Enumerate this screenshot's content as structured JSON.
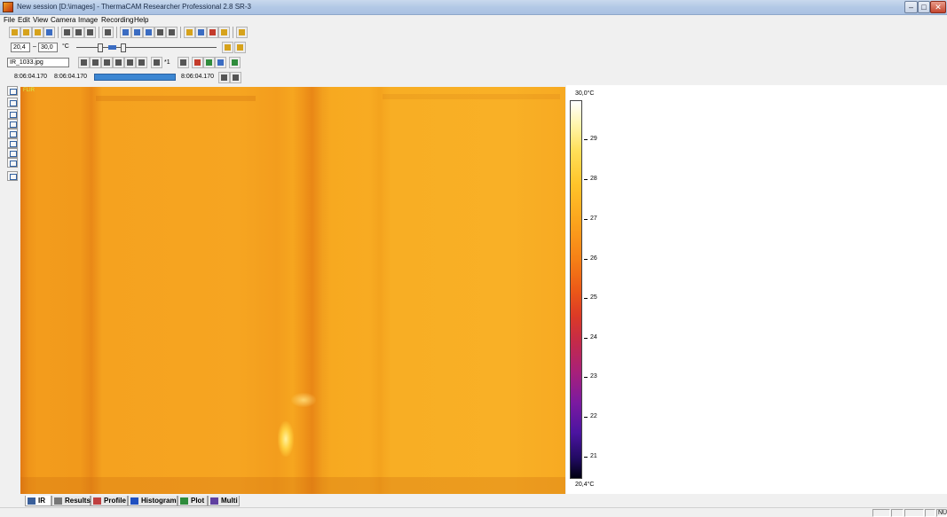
{
  "window": {
    "title": "New session [D:\\images] - ThermaCAM Researcher Professional 2.8 SR-3"
  },
  "menu": [
    "File",
    "Edit",
    "View",
    "Camera",
    "Image",
    "Recording",
    "Help"
  ],
  "toolbar": {
    "range_min": "20,4",
    "range_sep": "–",
    "range_max": "30,0",
    "range_unit": "°C",
    "file_name": "IR_1033.jpg",
    "frame_counter": "*1",
    "time_start": "8:06:04.170",
    "time_current": "8:06:04.170",
    "time_end": "8:06:04.170"
  },
  "ir_image": {
    "label": "FLIR"
  },
  "colorbar": {
    "max_label": "30,0°C",
    "min_label": "20,4°C",
    "ticks": [
      "29",
      "28",
      "27",
      "26",
      "25",
      "24",
      "23",
      "22",
      "21"
    ]
  },
  "tabs": [
    {
      "label": "IR",
      "icon": "camera-icon",
      "color": "#3a5f9a"
    },
    {
      "label": "Results",
      "icon": "table-icon",
      "color": "#555555"
    },
    {
      "label": "Profile",
      "icon": "profile-icon",
      "color": "#c04040"
    },
    {
      "label": "Histogram",
      "icon": "histogram-icon",
      "color": "#2050c0"
    },
    {
      "label": "Plot",
      "icon": "plot-icon",
      "color": "#2f8c3c"
    },
    {
      "label": "Multi",
      "icon": "multi-icon",
      "color": "#6040a0"
    }
  ],
  "status": {
    "num": "NU"
  }
}
